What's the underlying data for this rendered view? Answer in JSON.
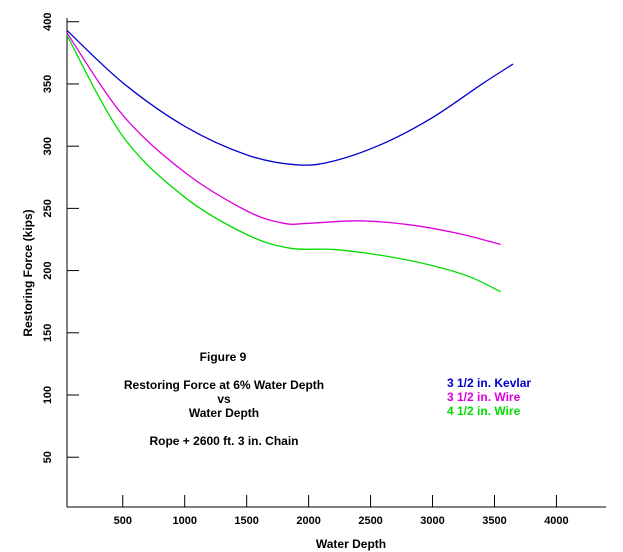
{
  "chart_data": {
    "type": "line",
    "title": "",
    "xlabel": "Water Depth",
    "ylabel": "Restoring Force (kips)",
    "xlim": [
      50,
      4400
    ],
    "ylim": [
      10,
      403
    ],
    "xticks": [
      500,
      1000,
      1500,
      2000,
      2500,
      3000,
      3500,
      4000
    ],
    "yticks": [
      50,
      100,
      150,
      200,
      250,
      300,
      350,
      400
    ],
    "grid": false,
    "legend": "right-middle",
    "annotations": [
      "Figure 9",
      "Restoring Force at 6% Water Depth",
      "vs",
      "Water Depth",
      "Rope + 2600 ft.  3 in. Chain"
    ],
    "series": [
      {
        "name": "3 1/2 in. Kevlar",
        "color": "#0000cc",
        "x": [
          50,
          500,
          1000,
          1500,
          1900,
          2200,
          2600,
          3000,
          3400,
          3650
        ],
        "y": [
          393,
          351,
          316,
          293,
          285,
          288,
          302,
          323,
          350,
          366
        ]
      },
      {
        "name": "3 1/2 in. Wire",
        "color": "#dd00dd",
        "x": [
          50,
          500,
          1000,
          1500,
          1800,
          2000,
          2400,
          2800,
          3200,
          3550
        ],
        "y": [
          391,
          325,
          279,
          248,
          238,
          238,
          240,
          237,
          230,
          221
        ]
      },
      {
        "name": "4 1/2 in. Wire",
        "color": "#00dd00",
        "x": [
          50,
          500,
          1000,
          1500,
          1850,
          2200,
          2600,
          3000,
          3300,
          3550
        ],
        "y": [
          389,
          308,
          259,
          229,
          218,
          217,
          212,
          204,
          195,
          183
        ]
      }
    ]
  }
}
